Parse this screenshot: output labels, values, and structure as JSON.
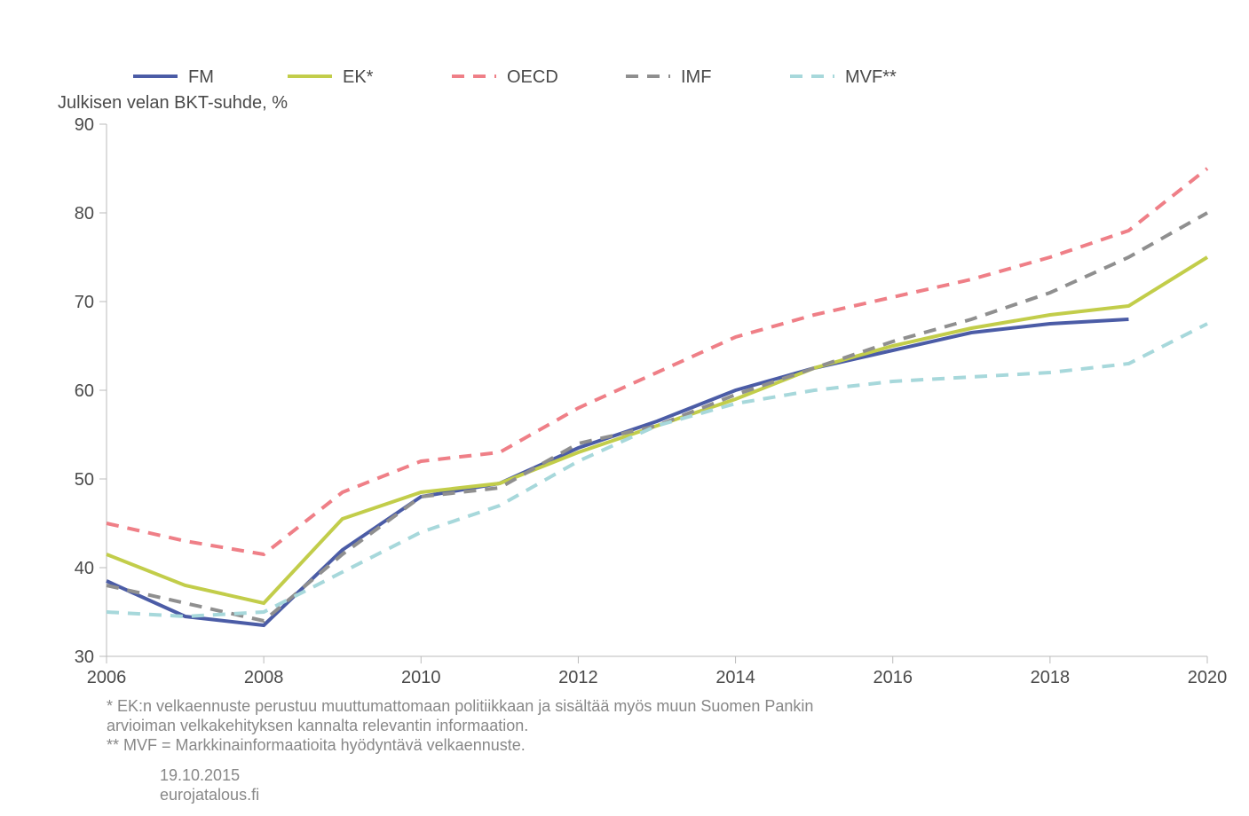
{
  "chart": {
    "type": "line",
    "y_title": "Julkisen velan BKT-suhde, %",
    "ylim": [
      30,
      90
    ],
    "ytick_step": 10,
    "xlim": [
      2006,
      2020
    ],
    "xticks": [
      2006,
      2008,
      2010,
      2012,
      2014,
      2016,
      2018,
      2020
    ],
    "xtick_labels": [
      "2006",
      "2008",
      "2010",
      "2012",
      "2014",
      "2016",
      "2018",
      "2020"
    ],
    "legend": [
      "FM",
      "EK*",
      "OECD",
      "IMF",
      "MVF**"
    ],
    "notes": [
      "* EK:n velkaennuste perustuu muuttumattomaan politiikkaan ja sisältää myös muun Suomen Pankin",
      "arvioiman velkakehityksen kannalta relevantin informaation.",
      "** MVF = Markkinainformaatioita hyödyntävä velkaennuste."
    ],
    "date": "19.10.2015",
    "site": "eurojatalous.fi",
    "axis_color": "#bbbbbb",
    "text_color": "#4a4a4a",
    "note_color": "#888888",
    "background_color": "#ffffff",
    "line_width": 4,
    "dash_pattern": "14 10",
    "series": [
      {
        "name": "FM",
        "color": "#4b5ca6",
        "style": "solid",
        "x": [
          2006,
          2007,
          2008,
          2009,
          2010,
          2011,
          2012,
          2013,
          2014,
          2015,
          2016,
          2017,
          2018,
          2019
        ],
        "y": [
          38.5,
          34.5,
          33.5,
          42,
          48,
          49.5,
          53.5,
          56.5,
          60,
          62.5,
          64.5,
          66.5,
          67.5,
          68
        ]
      },
      {
        "name": "EK*",
        "color": "#c2cd4a",
        "style": "solid",
        "x": [
          2006,
          2007,
          2008,
          2009,
          2010,
          2011,
          2012,
          2013,
          2014,
          2015,
          2016,
          2017,
          2018,
          2019,
          2020
        ],
        "y": [
          41.5,
          38,
          36,
          45.5,
          48.5,
          49.5,
          53,
          56,
          59,
          62.5,
          65,
          67,
          68.5,
          69.5,
          75
        ]
      },
      {
        "name": "OECD",
        "color": "#ef7f87",
        "style": "dashed",
        "x": [
          2006,
          2007,
          2008,
          2009,
          2010,
          2011,
          2012,
          2013,
          2014,
          2015,
          2016,
          2017,
          2018,
          2019,
          2020
        ],
        "y": [
          45,
          43,
          41.5,
          48.5,
          52,
          53,
          58,
          62,
          66,
          68.5,
          70.5,
          72.5,
          75,
          78,
          85
        ]
      },
      {
        "name": "IMF",
        "color": "#8f8f8f",
        "style": "dashed",
        "x": [
          2006,
          2007,
          2008,
          2009,
          2010,
          2011,
          2012,
          2013,
          2014,
          2015,
          2016,
          2017,
          2018,
          2019,
          2020
        ],
        "y": [
          38,
          36,
          34,
          41.5,
          48,
          49,
          54,
          56,
          59.5,
          62.5,
          65.5,
          68,
          71,
          75,
          80
        ]
      },
      {
        "name": "MVF**",
        "color": "#a7d8db",
        "style": "dashed",
        "x": [
          2006,
          2007,
          2008,
          2009,
          2010,
          2011,
          2012,
          2013,
          2014,
          2015,
          2016,
          2017,
          2018,
          2019,
          2020
        ],
        "y": [
          35,
          34.5,
          35,
          39.5,
          44,
          47,
          52,
          56,
          58.5,
          60,
          61,
          61.5,
          62,
          63,
          67.5
        ]
      }
    ]
  }
}
